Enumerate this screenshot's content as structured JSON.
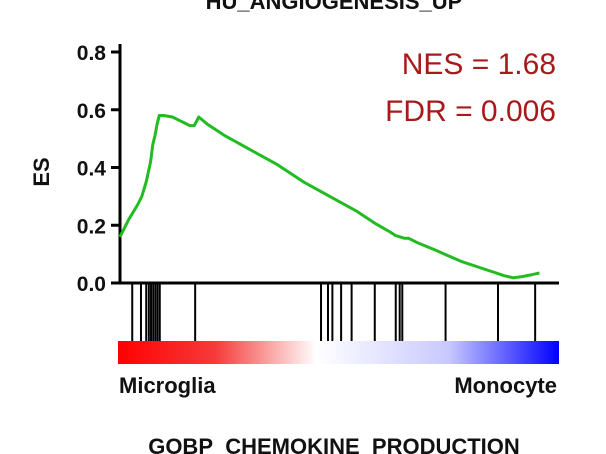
{
  "chart_data": {
    "type": "line",
    "title": "HU_ANGIOGENESIS_UP",
    "footer_title": "GOBP_CHEMOKINE_PRODUCTION",
    "ylabel": "ES",
    "xlabel": "",
    "ylim": [
      0,
      0.8
    ],
    "xlim": [
      0,
      100
    ],
    "yticks": [
      0.0,
      0.2,
      0.4,
      0.6,
      0.8
    ],
    "ytick_labels": [
      "0.0",
      "0.2",
      "0.4",
      "0.6",
      "0.8"
    ],
    "grid": false,
    "rank_labels": {
      "left": "Microglia",
      "right": "Monocyte"
    },
    "annotations": {
      "nes": "NES = 1.68",
      "fdr": "FDR = 0.006"
    },
    "series": [
      {
        "color": "#22bb22",
        "x": [
          0,
          2,
          4,
          5,
          6,
          7,
          7.5,
          8,
          8.5,
          9,
          10,
          12,
          14,
          16,
          17,
          17.5,
          18,
          20,
          24,
          30,
          36,
          42,
          48,
          54,
          58,
          62,
          63,
          64,
          65,
          66,
          68,
          72,
          78,
          84,
          88,
          90,
          92,
          94,
          96
        ],
        "y": [
          0.16,
          0.22,
          0.27,
          0.3,
          0.35,
          0.42,
          0.48,
          0.51,
          0.55,
          0.58,
          0.58,
          0.575,
          0.56,
          0.545,
          0.545,
          0.56,
          0.575,
          0.55,
          0.51,
          0.46,
          0.41,
          0.35,
          0.3,
          0.25,
          0.21,
          0.175,
          0.165,
          0.16,
          0.155,
          0.155,
          0.14,
          0.115,
          0.075,
          0.045,
          0.025,
          0.018,
          0.022,
          0.028,
          0.035
        ]
      }
    ],
    "hit_positions": [
      2.8,
      4.8,
      6.0,
      6.6,
      7.1,
      7.6,
      8.1,
      8.6,
      9.1,
      17.2,
      46.0,
      47.6,
      48.6,
      50.6,
      53.0,
      58.3,
      63.1,
      64.0,
      64.6,
      74.5,
      86.5,
      95.0
    ],
    "colors": {
      "curve": "#22bb22",
      "stat_text": "#a81a1a",
      "rank_high": "#ff0000",
      "rank_mid": "#ffffff",
      "rank_low": "#0000ff"
    }
  }
}
